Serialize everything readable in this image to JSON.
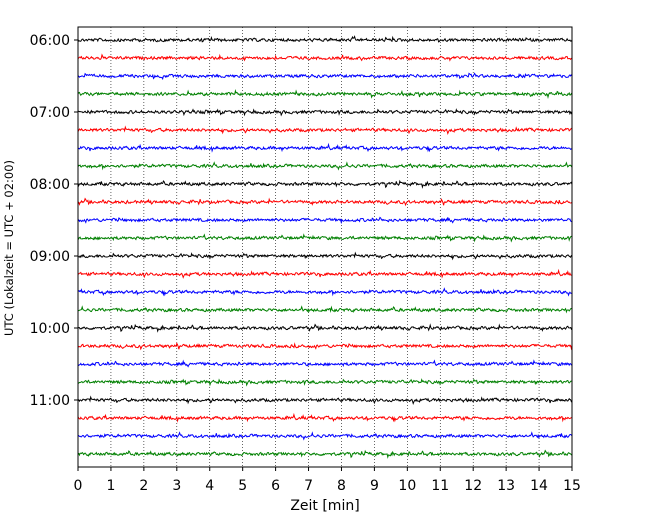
{
  "chart_data": {
    "type": "line",
    "title": "",
    "xlabel": "Zeit  [min]",
    "ylabel": "UTC (Lokalzeit = UTC + 02:00)",
    "xlim": [
      0,
      15
    ],
    "x_ticks": [
      "0",
      "1",
      "2",
      "3",
      "4",
      "5",
      "6",
      "7",
      "8",
      "9",
      "10",
      "11",
      "12",
      "13",
      "14",
      "15"
    ],
    "y_ticks": [
      "06:00",
      "07:00",
      "08:00",
      "09:00",
      "10:00",
      "11:00"
    ],
    "grid": "vertical-dotted",
    "trace_interval_minutes": 15,
    "start_time": "06:00",
    "end_time": "11:45",
    "trace_count": 24,
    "trace_colors": [
      "#000000",
      "#ff0000",
      "#0000ff",
      "#008000"
    ],
    "series": [
      {
        "values": []
      }
    ]
  }
}
